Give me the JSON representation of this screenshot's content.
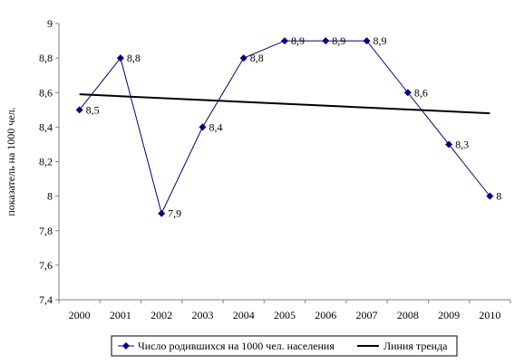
{
  "chart_data": {
    "type": "line",
    "x": [
      "2000",
      "2001",
      "2002",
      "2003",
      "2004",
      "2005",
      "2006",
      "2007",
      "2008",
      "2009",
      "2010"
    ],
    "series": [
      {
        "name": "Число родившихся на 1000 чел. населения",
        "values": [
          8.5,
          8.8,
          7.9,
          8.4,
          8.8,
          8.9,
          8.9,
          8.9,
          8.6,
          8.3,
          8.0
        ],
        "labels": [
          "8,5",
          "8,8",
          "7,9",
          "8,4",
          "8,8",
          "8,9",
          "8,9",
          "8,9",
          "8,6",
          "8,3",
          "8"
        ],
        "color": "#000080",
        "marker": "diamond"
      }
    ],
    "trend": {
      "name": "Линия тренда",
      "start": 8.59,
      "end": 8.48,
      "color": "#000000"
    },
    "ylabel": "показатель на 1000 чел.",
    "xlabel": "",
    "ylim": [
      7.4,
      9.0
    ],
    "yticks": [
      {
        "value": 7.4,
        "label": "7,4"
      },
      {
        "value": 7.6,
        "label": "7,6"
      },
      {
        "value": 7.8,
        "label": "7,8"
      },
      {
        "value": 8.0,
        "label": "8"
      },
      {
        "value": 8.2,
        "label": "8,2"
      },
      {
        "value": 8.4,
        "label": "8,4"
      },
      {
        "value": 8.6,
        "label": "8,6"
      },
      {
        "value": 8.8,
        "label": "8,8"
      },
      {
        "value": 9.0,
        "label": "9"
      }
    ],
    "grid": false,
    "legend_position": "bottom"
  }
}
